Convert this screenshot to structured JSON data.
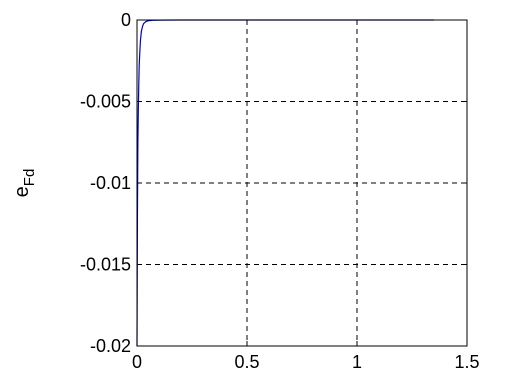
{
  "chart_data": {
    "type": "line",
    "title": "",
    "xlabel": "",
    "ylabel_main": "e",
    "ylabel_sub": "Fd",
    "xlim": [
      0,
      1.5
    ],
    "ylim": [
      -0.02,
      0
    ],
    "grid": true,
    "xticks": [
      0,
      0.5,
      1,
      1.5
    ],
    "xtick_labels": [
      "0",
      "0.5",
      "1",
      "1.5"
    ],
    "yticks": [
      0,
      -0.005,
      -0.01,
      -0.015,
      -0.02
    ],
    "ytick_labels": [
      "0",
      "-0.005",
      "-0.01",
      "-0.015",
      "-0.02"
    ],
    "series": [
      {
        "color": "#0000cc",
        "x": [
          0,
          0.001,
          0.002,
          0.004,
          0.006,
          0.008,
          0.01,
          0.013,
          0.016,
          0.02,
          0.025,
          0.03,
          0.04,
          0.05,
          0.07,
          0.1,
          0.2,
          0.5,
          0.8,
          1.0,
          1.2,
          1.35
        ],
        "y": [
          -0.02,
          -0.016,
          -0.012,
          -0.0075,
          -0.0055,
          -0.004,
          -0.0028,
          -0.0019,
          -0.0012,
          -0.0007,
          -0.0004,
          -0.00022,
          -0.0001,
          -5e-05,
          -2e-05,
          -1e-05,
          0,
          0,
          0,
          0,
          0,
          0
        ]
      }
    ]
  }
}
